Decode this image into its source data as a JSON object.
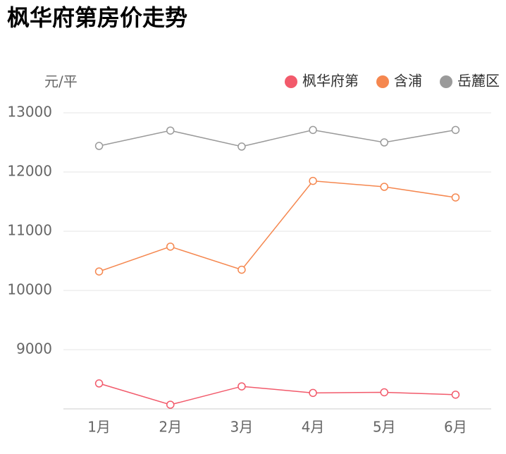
{
  "chart_data": {
    "type": "line",
    "title": "枫华府第房价走势",
    "y_label": "元/平",
    "categories": [
      "1月",
      "2月",
      "3月",
      "4月",
      "5月",
      "6月"
    ],
    "series": [
      {
        "name": "枫华府第",
        "color": "#f25a6b",
        "values": [
          8430,
          8070,
          8380,
          8270,
          8280,
          8240
        ]
      },
      {
        "name": "含浦",
        "color": "#f5874f",
        "values": [
          10320,
          10740,
          10350,
          11850,
          11750,
          11570
        ]
      },
      {
        "name": "岳麓区",
        "color": "#9a9a9a",
        "values": [
          12440,
          12700,
          12430,
          12710,
          12500,
          12710
        ]
      }
    ],
    "ylim": [
      8000,
      13000
    ],
    "yticks": [
      9000,
      10000,
      11000,
      12000,
      13000
    ],
    "grid": true,
    "legend": "top-right"
  }
}
